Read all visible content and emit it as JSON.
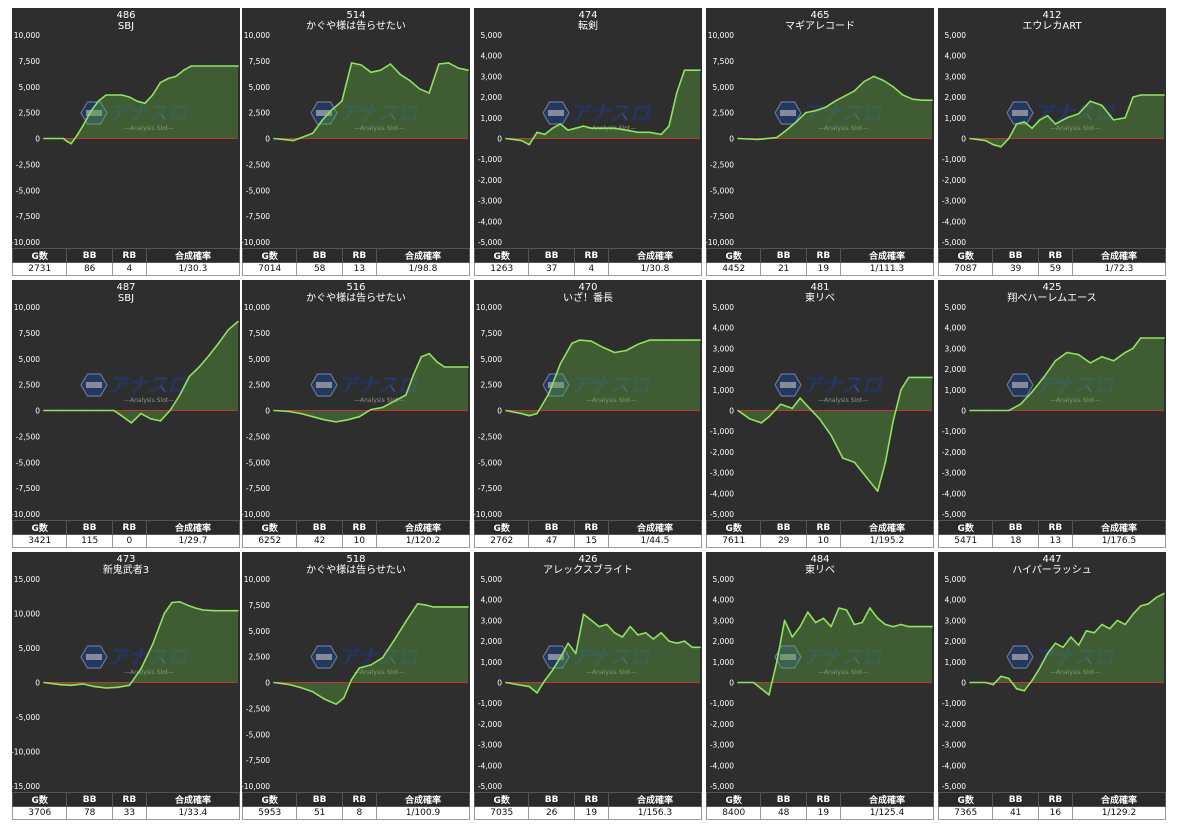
{
  "colors": {
    "background": "#2e2e2e",
    "line": "#8fe35f",
    "fill": "#5fa83a",
    "zero_line": "#c0392b",
    "tick_text": "#ffffff"
  },
  "watermark": {
    "brand": "アナスロ",
    "tagline": "Analysis Slot",
    "icon": "hexagon-logo-icon"
  },
  "table_headers": [
    "G数",
    "BB",
    "RB",
    "合成確率"
  ],
  "chart_data": [
    {
      "type": "area",
      "number": "486",
      "name": "SBJ",
      "ylim": [
        -10000,
        10000
      ],
      "yticks": [
        "10,000",
        "7,500",
        "5,000",
        "2,500",
        "0",
        "-2,500",
        "-5,000",
        "-7,500",
        "-10,000"
      ],
      "x": [
        0,
        5,
        10,
        12,
        14,
        17,
        20,
        24,
        28,
        32,
        36,
        40,
        44,
        48,
        52,
        56,
        60,
        64,
        68,
        72,
        76,
        80,
        84,
        88,
        92,
        96,
        100
      ],
      "y": [
        0,
        0,
        0,
        -300,
        -500,
        300,
        1200,
        2600,
        3600,
        4200,
        4200,
        4200,
        4000,
        3600,
        3400,
        4200,
        5400,
        5800,
        6000,
        6600,
        7000,
        7000,
        7000,
        7000,
        7000,
        7000,
        7000
      ],
      "stats": [
        "2731",
        "86",
        "4",
        "1/30.3"
      ]
    },
    {
      "type": "area",
      "number": "514",
      "name": "かぐや様は告らせたい",
      "ylim": [
        -10000,
        10000
      ],
      "yticks": [
        "10,000",
        "7,500",
        "5,000",
        "2,500",
        "0",
        "-2,500",
        "-5,000",
        "-7,500",
        "-10,000"
      ],
      "x": [
        0,
        10,
        20,
        25,
        30,
        35,
        40,
        45,
        50,
        55,
        60,
        65,
        70,
        75,
        80,
        85,
        90,
        95,
        100
      ],
      "y": [
        0,
        -200,
        500,
        1800,
        2800,
        3600,
        7300,
        7100,
        6400,
        6600,
        7200,
        6200,
        5600,
        4800,
        4400,
        7200,
        7300,
        6800,
        6600
      ],
      "stats": [
        "7014",
        "58",
        "13",
        "1/98.8"
      ]
    },
    {
      "type": "area",
      "number": "474",
      "name": "転剣",
      "ylim": [
        -5000,
        5000
      ],
      "yticks": [
        "5,000",
        "4,000",
        "3,000",
        "2,000",
        "1,000",
        "0",
        "-1,000",
        "-2,000",
        "-3,000",
        "-4,000",
        "-5,000"
      ],
      "x": [
        0,
        8,
        12,
        16,
        20,
        24,
        28,
        32,
        36,
        40,
        44,
        50,
        56,
        62,
        68,
        74,
        80,
        84,
        88,
        92,
        96,
        100
      ],
      "y": [
        0,
        -100,
        -300,
        300,
        200,
        500,
        700,
        400,
        500,
        600,
        500,
        500,
        500,
        400,
        300,
        300,
        200,
        600,
        2200,
        3300,
        3300,
        3300
      ],
      "stats": [
        "1263",
        "37",
        "4",
        "1/30.8"
      ]
    },
    {
      "type": "area",
      "number": "465",
      "name": "マギアレコード",
      "ylim": [
        -10000,
        10000
      ],
      "yticks": [
        "10,000",
        "7,500",
        "5,000",
        "2,500",
        "0",
        "-2,500",
        "-5,000",
        "-7,500",
        "-10,000"
      ],
      "x": [
        0,
        10,
        20,
        25,
        30,
        35,
        40,
        45,
        50,
        55,
        60,
        65,
        70,
        75,
        80,
        85,
        90,
        95,
        100
      ],
      "y": [
        0,
        -100,
        100,
        800,
        1600,
        2500,
        2700,
        3000,
        3600,
        4100,
        4600,
        5500,
        6000,
        5600,
        5000,
        4200,
        3800,
        3700,
        3700
      ],
      "stats": [
        "4452",
        "21",
        "19",
        "1/111.3"
      ]
    },
    {
      "type": "area",
      "number": "412",
      "name": "エウレカART",
      "ylim": [
        -5000,
        5000
      ],
      "yticks": [
        "5,000",
        "4,000",
        "3,000",
        "2,000",
        "1,000",
        "0",
        "-1,000",
        "-2,000",
        "-3,000",
        "-4,000",
        "-5,000"
      ],
      "x": [
        0,
        8,
        12,
        16,
        20,
        24,
        28,
        32,
        36,
        40,
        44,
        50,
        56,
        62,
        68,
        74,
        80,
        84,
        88,
        92,
        96,
        100
      ],
      "y": [
        0,
        -100,
        -300,
        -400,
        0,
        700,
        800,
        500,
        900,
        1100,
        700,
        1000,
        1200,
        1800,
        1600,
        900,
        1000,
        2000,
        2100,
        2100,
        2100,
        2100
      ],
      "stats": [
        "7087",
        "39",
        "59",
        "1/72.3"
      ]
    },
    {
      "type": "area",
      "number": "487",
      "name": "SBJ",
      "ylim": [
        -10000,
        10000
      ],
      "yticks": [
        "10,000",
        "7,500",
        "5,000",
        "2,500",
        "0",
        "-2,500",
        "-5,000",
        "-7,500",
        "-10,000"
      ],
      "x": [
        0,
        10,
        20,
        30,
        36,
        40,
        45,
        50,
        55,
        60,
        65,
        70,
        75,
        80,
        85,
        90,
        95,
        100
      ],
      "y": [
        0,
        0,
        0,
        0,
        0,
        -500,
        -1200,
        -300,
        -800,
        -1000,
        0,
        1500,
        3300,
        4200,
        5300,
        6500,
        7800,
        8600
      ],
      "stats": [
        "3421",
        "115",
        "0",
        "1/29.7"
      ]
    },
    {
      "type": "area",
      "number": "516",
      "name": "かぐや様は告らせたい",
      "ylim": [
        -10000,
        10000
      ],
      "yticks": [
        "10,000",
        "7,500",
        "5,000",
        "2,500",
        "0",
        "-2,500",
        "-5,000",
        "-7,500",
        "-10,000"
      ],
      "x": [
        0,
        8,
        14,
        20,
        26,
        32,
        38,
        44,
        50,
        56,
        62,
        68,
        72,
        76,
        80,
        84,
        88,
        92,
        96,
        100
      ],
      "y": [
        0,
        -100,
        -300,
        -600,
        -900,
        -1100,
        -900,
        -600,
        100,
        300,
        900,
        1500,
        3500,
        5200,
        5500,
        4700,
        4200,
        4200,
        4200,
        4200
      ],
      "stats": [
        "6252",
        "42",
        "10",
        "1/120.2"
      ]
    },
    {
      "type": "area",
      "number": "470",
      "name": "いざ！番長",
      "ylim": [
        -10000,
        10000
      ],
      "yticks": [
        "10,000",
        "7,500",
        "5,000",
        "2,500",
        "0",
        "-2,500",
        "-5,000",
        "-7,500",
        "-10,000"
      ],
      "x": [
        0,
        8,
        12,
        16,
        22,
        28,
        34,
        38,
        44,
        50,
        56,
        62,
        68,
        74,
        80,
        86,
        92,
        100
      ],
      "y": [
        0,
        -300,
        -500,
        -300,
        1600,
        4500,
        6500,
        6800,
        6700,
        6100,
        5600,
        5800,
        6400,
        6800,
        6800,
        6800,
        6800,
        6800
      ],
      "stats": [
        "2762",
        "47",
        "15",
        "1/44.5"
      ]
    },
    {
      "type": "area",
      "number": "481",
      "name": "東リベ",
      "ylim": [
        -5000,
        5000
      ],
      "yticks": [
        "5,000",
        "4,000",
        "3,000",
        "2,000",
        "1,000",
        "0",
        "-1,000",
        "-2,000",
        "-3,000",
        "-4,000",
        "-5,000"
      ],
      "x": [
        0,
        6,
        12,
        16,
        22,
        28,
        32,
        36,
        42,
        48,
        54,
        60,
        66,
        72,
        76,
        80,
        84,
        88,
        92,
        96,
        100
      ],
      "y": [
        0,
        -400,
        -600,
        -300,
        300,
        100,
        600,
        200,
        -400,
        -1200,
        -2300,
        -2500,
        -3200,
        -3900,
        -2500,
        -500,
        1000,
        1600,
        1600,
        1600,
        1600
      ],
      "stats": [
        "7611",
        "29",
        "10",
        "1/195.2"
      ]
    },
    {
      "type": "area",
      "number": "425",
      "name": "翔べハーレムエース",
      "ylim": [
        -5000,
        5000
      ],
      "yticks": [
        "5,000",
        "4,000",
        "3,000",
        "2,000",
        "1,000",
        "0",
        "-1,000",
        "-2,000",
        "-3,000",
        "-4,000",
        "-5,000"
      ],
      "x": [
        0,
        10,
        20,
        26,
        32,
        38,
        44,
        50,
        56,
        62,
        68,
        74,
        80,
        84,
        88,
        92,
        96,
        100
      ],
      "y": [
        0,
        0,
        0,
        300,
        900,
        1600,
        2400,
        2800,
        2700,
        2300,
        2600,
        2400,
        2800,
        3000,
        3500,
        3500,
        3500,
        3500
      ],
      "stats": [
        "5471",
        "18",
        "13",
        "1/176.5"
      ]
    },
    {
      "type": "area",
      "number": "473",
      "name": "新鬼武者3",
      "ylim": [
        -15000,
        15000
      ],
      "yticks": [
        "15,000",
        "10,000",
        "5,000",
        "0",
        "-5,000",
        "-10,000",
        "-15,000"
      ],
      "x": [
        0,
        8,
        14,
        20,
        26,
        32,
        38,
        44,
        50,
        56,
        62,
        66,
        70,
        74,
        78,
        82,
        88,
        94,
        100
      ],
      "y": [
        0,
        -300,
        -400,
        -200,
        -600,
        -800,
        -700,
        -400,
        2000,
        5500,
        10000,
        11600,
        11700,
        11200,
        10800,
        10500,
        10400,
        10400,
        10400
      ],
      "stats": [
        "3706",
        "78",
        "33",
        "1/33.4"
      ]
    },
    {
      "type": "area",
      "number": "518",
      "name": "かぐや様は告らせたい",
      "ylim": [
        -10000,
        10000
      ],
      "yticks": [
        "10,000",
        "7,500",
        "5,000",
        "2,500",
        "0",
        "-2,500",
        "-5,000",
        "-7,500",
        "-10,000"
      ],
      "x": [
        0,
        8,
        14,
        20,
        26,
        32,
        36,
        40,
        44,
        50,
        56,
        62,
        68,
        74,
        78,
        82,
        88,
        94,
        100
      ],
      "y": [
        0,
        -200,
        -500,
        -900,
        -1600,
        -2100,
        -1500,
        300,
        1400,
        1700,
        2400,
        4100,
        5900,
        7600,
        7500,
        7300,
        7300,
        7300,
        7300
      ],
      "stats": [
        "5953",
        "51",
        "8",
        "1/100.9"
      ]
    },
    {
      "type": "area",
      "number": "426",
      "name": "アレックスブライト",
      "ylim": [
        -5000,
        5000
      ],
      "yticks": [
        "5,000",
        "4,000",
        "3,000",
        "2,000",
        "1,000",
        "0",
        "-1,000",
        "-2,000",
        "-3,000",
        "-4,000",
        "-5,000"
      ],
      "x": [
        0,
        6,
        12,
        16,
        20,
        24,
        28,
        32,
        36,
        40,
        44,
        48,
        52,
        56,
        60,
        64,
        68,
        72,
        76,
        80,
        84,
        88,
        92,
        96,
        100
      ],
      "y": [
        0,
        -100,
        -200,
        -500,
        100,
        600,
        1200,
        1900,
        1400,
        3300,
        3000,
        2700,
        2800,
        2400,
        2200,
        2700,
        2300,
        2400,
        2100,
        2400,
        2000,
        1900,
        2000,
        1700,
        1700
      ],
      "stats": [
        "7035",
        "26",
        "19",
        "1/156.3"
      ]
    },
    {
      "type": "area",
      "number": "484",
      "name": "東リベ",
      "ylim": [
        -5000,
        5000
      ],
      "yticks": [
        "5,000",
        "4,000",
        "3,000",
        "2,000",
        "1,000",
        "0",
        "-1,000",
        "-2,000",
        "-3,000",
        "-4,000",
        "-5,000"
      ],
      "x": [
        0,
        8,
        12,
        16,
        20,
        24,
        28,
        32,
        36,
        40,
        44,
        48,
        52,
        56,
        60,
        64,
        68,
        72,
        76,
        80,
        84,
        88,
        92,
        96,
        100
      ],
      "y": [
        0,
        0,
        -300,
        -600,
        1000,
        3000,
        2200,
        2700,
        3400,
        2900,
        3100,
        2700,
        3600,
        3500,
        2800,
        2900,
        3600,
        3100,
        2800,
        2700,
        2800,
        2700,
        2700,
        2700,
        2700
      ],
      "stats": [
        "8400",
        "48",
        "19",
        "1/125.4"
      ]
    },
    {
      "type": "area",
      "number": "447",
      "name": "ハイパーラッシュ",
      "ylim": [
        -5000,
        5000
      ],
      "yticks": [
        "5,000",
        "4,000",
        "3,000",
        "2,000",
        "1,000",
        "0",
        "-1,000",
        "-2,000",
        "-3,000",
        "-4,000",
        "-5,000"
      ],
      "x": [
        0,
        8,
        12,
        16,
        20,
        24,
        28,
        32,
        36,
        40,
        44,
        48,
        52,
        56,
        60,
        64,
        68,
        72,
        76,
        80,
        84,
        88,
        92,
        96,
        100
      ],
      "y": [
        0,
        0,
        -100,
        300,
        200,
        -300,
        -400,
        100,
        700,
        1400,
        1900,
        1700,
        2200,
        1800,
        2500,
        2400,
        2800,
        2600,
        3000,
        2800,
        3300,
        3700,
        3800,
        4100,
        4300
      ],
      "stats": [
        "7365",
        "41",
        "16",
        "1/129.2"
      ]
    }
  ]
}
